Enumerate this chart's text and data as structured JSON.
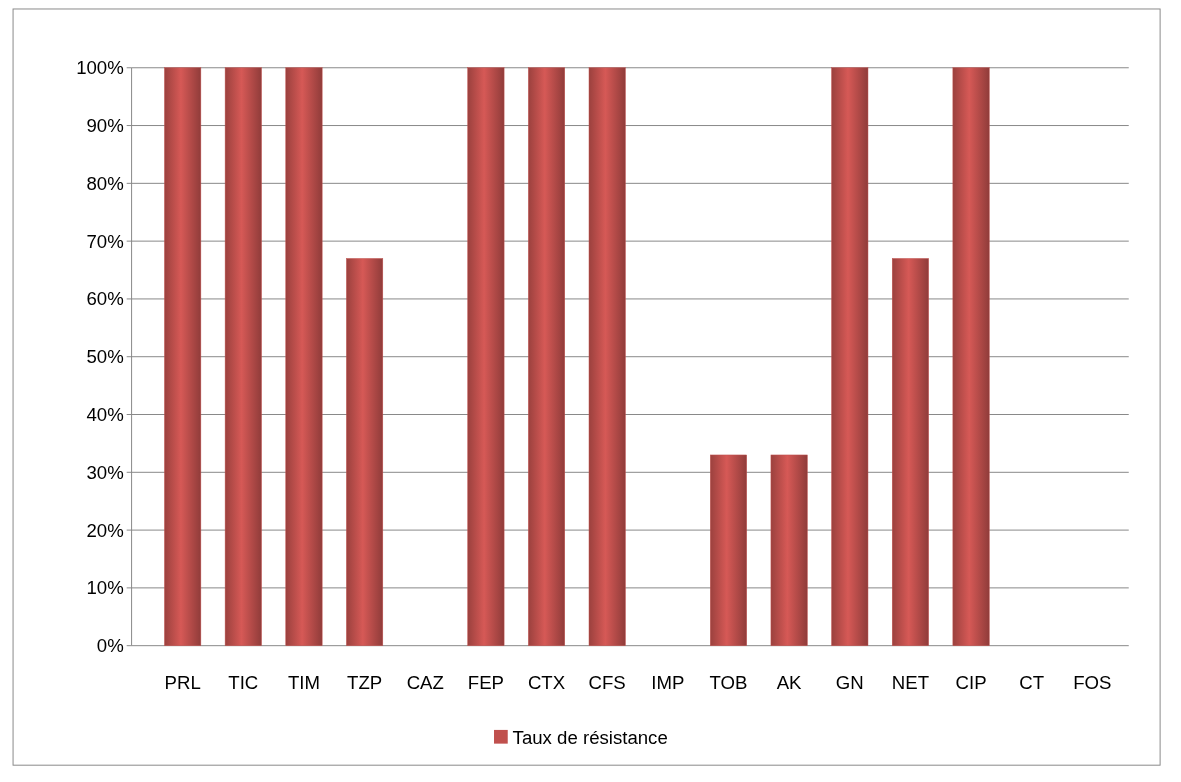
{
  "chart_data": {
    "type": "bar",
    "categories": [
      "PRL",
      "TIC",
      "TIM",
      "TZP",
      "CAZ",
      "FEP",
      "CTX",
      "CFS",
      "IMP",
      "TOB",
      "AK",
      "GN",
      "NET",
      "CIP",
      "CT",
      "FOS"
    ],
    "series": [
      {
        "name": "Taux de résistance",
        "color": "#c0504d",
        "values": [
          100,
          100,
          100,
          67,
          0,
          100,
          100,
          100,
          0,
          33,
          33,
          100,
          67,
          100,
          0,
          0
        ]
      }
    ],
    "ylim": [
      0,
      100
    ],
    "yticks": [
      {
        "value": 0,
        "label": "0%"
      },
      {
        "value": 10,
        "label": "10%"
      },
      {
        "value": 20,
        "label": "20%"
      },
      {
        "value": 30,
        "label": "30%"
      },
      {
        "value": 40,
        "label": "40%"
      },
      {
        "value": 50,
        "label": "50%"
      },
      {
        "value": 60,
        "label": "60%"
      },
      {
        "value": 70,
        "label": "70%"
      },
      {
        "value": 80,
        "label": "80%"
      },
      {
        "value": 90,
        "label": "90%"
      },
      {
        "value": 100,
        "label": "100%"
      }
    ],
    "grid": "y",
    "legend": "bottom"
  }
}
